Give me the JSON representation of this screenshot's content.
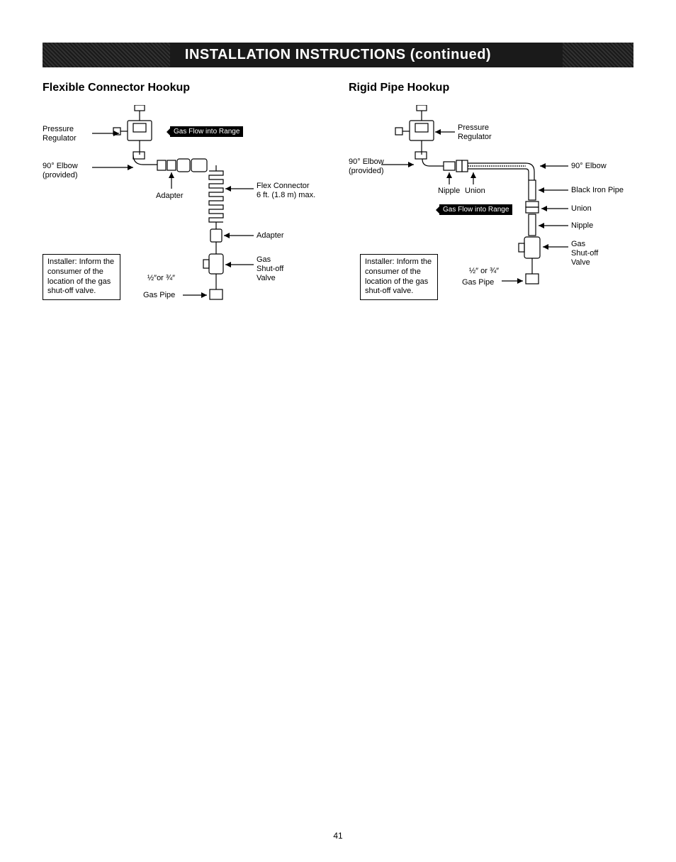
{
  "banner": "INSTALLATION INSTRUCTIONS (continued)",
  "page_num": "41",
  "left": {
    "title": "Flexible Connector Hookup",
    "pressure_regulator": "Pressure\nRegulator",
    "elbow_provided": "90° Elbow\n(provided)",
    "flow_into_range": "Gas Flow into Range",
    "adapter": "Adapter",
    "flex_connector": "Flex Connector\n6 ft. (1.8 m) max.",
    "adapter2": "Adapter",
    "shut_off": "Gas\nShut-off\nValve",
    "gas_pipe_size": "½″or ¾″",
    "gas_pipe": "Gas Pipe",
    "note": "Installer: Inform the consumer of the location of the gas shut-off valve."
  },
  "right": {
    "title": "Rigid Pipe Hookup",
    "pressure_regulator": "Pressure\nRegulator",
    "elbow_provided": "90° Elbow\n(provided)",
    "nipple": "Nipple",
    "union": "Union",
    "flow_into_range": "Gas Flow into Range",
    "elbow90": "90° Elbow",
    "black_iron": "Black Iron Pipe",
    "union2": "Union",
    "nipple2": "Nipple",
    "shut_off": "Gas\nShut-off\nValve",
    "gas_pipe_size": "½″ or ¾″",
    "gas_pipe": "Gas Pipe",
    "note": "Installer: Inform the consumer of the location of the gas shut-off valve."
  }
}
